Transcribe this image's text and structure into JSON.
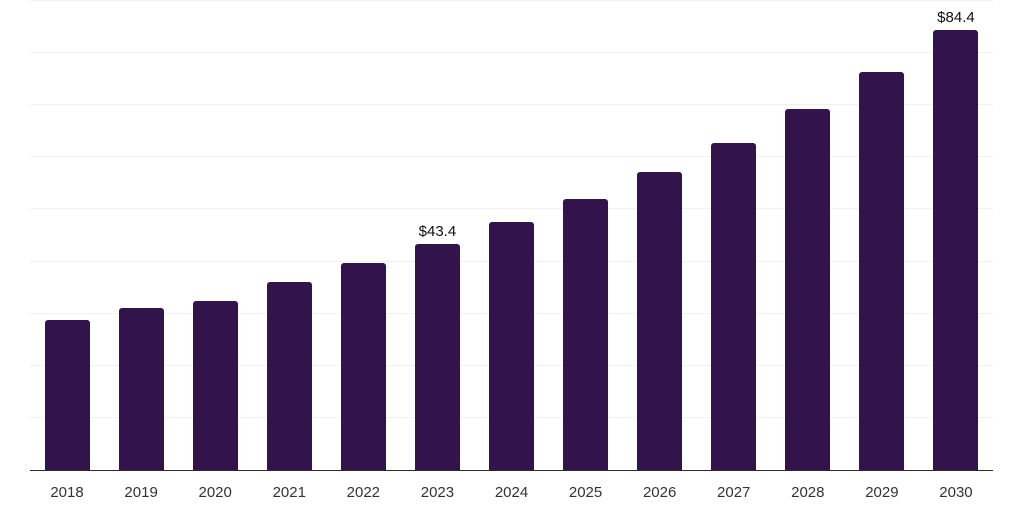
{
  "chart_data": {
    "type": "bar",
    "categories": [
      "2018",
      "2019",
      "2020",
      "2021",
      "2022",
      "2023",
      "2024",
      "2025",
      "2026",
      "2027",
      "2028",
      "2029",
      "2030"
    ],
    "values": [
      28.7,
      31.1,
      32.4,
      36.1,
      39.8,
      43.4,
      47.5,
      52.0,
      57.1,
      62.7,
      69.2,
      76.3,
      84.4
    ],
    "value_labels": {
      "2023": "$43.4",
      "2030": "$84.4"
    },
    "ylim": [
      0,
      90
    ],
    "gridline_step": 10,
    "grid": "horizontal",
    "legend": "none",
    "colors": {
      "bar": "#33134B",
      "axis": "#2B2B2B",
      "gridline": "#F0F0F0",
      "value_label": "#111111",
      "tick_label": "#333333",
      "background": "#FFFFFF"
    }
  }
}
